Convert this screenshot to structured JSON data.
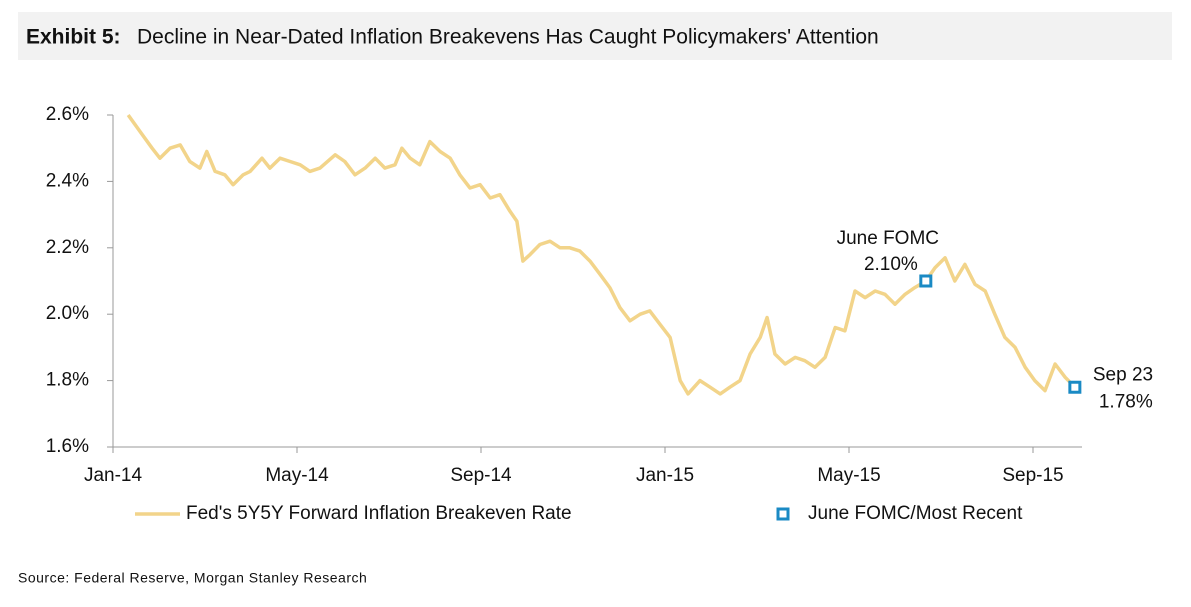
{
  "chart_data": {
    "type": "line",
    "title_label": "Exhibit 5:",
    "title": "Decline in Near-Dated Inflation Breakevens Has Caught Policymakers' Attention",
    "source": "Source: Federal Reserve, Morgan Stanley Research",
    "legend": "bottom",
    "xlim": [
      0,
      21
    ],
    "xticks": [
      {
        "value": 0,
        "label": "Jan-14"
      },
      {
        "value": 4,
        "label": "May-14"
      },
      {
        "value": 8,
        "label": "Sep-14"
      },
      {
        "value": 12,
        "label": "Jan-15"
      },
      {
        "value": 16,
        "label": "May-15"
      },
      {
        "value": 20,
        "label": "Sep-15"
      }
    ],
    "ylim": [
      1.6,
      2.6
    ],
    "yticks": [
      {
        "value": 1.6,
        "label": "1.6%"
      },
      {
        "value": 1.8,
        "label": "1.8%"
      },
      {
        "value": 2.0,
        "label": "2.0%"
      },
      {
        "value": 2.2,
        "label": "2.2%"
      },
      {
        "value": 2.4,
        "label": "2.4%"
      },
      {
        "value": 2.6,
        "label": "2.6%"
      }
    ],
    "series": [
      {
        "name": "Fed's 5Y5Y Forward Inflation Breakeven Rate",
        "color": "#f2d48a",
        "x": [
          0.33,
          0.59,
          0.85,
          1.02,
          1.24,
          1.46,
          1.67,
          1.89,
          2.04,
          2.22,
          2.43,
          2.61,
          2.83,
          2.98,
          3.24,
          3.41,
          3.63,
          3.85,
          4.07,
          4.28,
          4.5,
          4.83,
          5.04,
          5.26,
          5.48,
          5.7,
          5.91,
          6.13,
          6.28,
          6.46,
          6.67,
          6.89,
          7.11,
          7.33,
          7.54,
          7.76,
          7.98,
          8.2,
          8.41,
          8.63,
          8.78,
          8.91,
          9.07,
          9.28,
          9.5,
          9.72,
          9.93,
          10.15,
          10.37,
          10.59,
          10.8,
          11.02,
          11.24,
          11.46,
          11.67,
          11.89,
          12.11,
          12.33,
          12.5,
          12.76,
          12.98,
          13.2,
          13.41,
          13.63,
          13.85,
          14.07,
          14.22,
          14.39,
          14.61,
          14.83,
          15.04,
          15.26,
          15.48,
          15.7,
          15.91,
          16.13,
          16.35,
          16.57,
          16.78,
          17,
          17.22,
          17.43,
          17.67,
          17.87,
          18.09,
          18.3,
          18.52,
          18.74,
          18.96,
          19.17,
          19.39,
          19.61,
          19.83,
          20.04,
          20.26,
          20.48,
          20.7,
          20.91
        ],
        "values": [
          2.6,
          2.55,
          2.5,
          2.47,
          2.5,
          2.51,
          2.46,
          2.44,
          2.49,
          2.43,
          2.42,
          2.39,
          2.42,
          2.43,
          2.47,
          2.44,
          2.47,
          2.46,
          2.45,
          2.43,
          2.44,
          2.48,
          2.46,
          2.42,
          2.44,
          2.47,
          2.44,
          2.45,
          2.5,
          2.47,
          2.45,
          2.52,
          2.49,
          2.47,
          2.42,
          2.38,
          2.39,
          2.35,
          2.36,
          2.31,
          2.28,
          2.16,
          2.18,
          2.21,
          2.22,
          2.2,
          2.2,
          2.19,
          2.16,
          2.12,
          2.08,
          2.02,
          1.98,
          2.0,
          2.01,
          1.97,
          1.93,
          1.8,
          1.76,
          1.8,
          1.78,
          1.76,
          1.78,
          1.8,
          1.88,
          1.93,
          1.99,
          1.88,
          1.85,
          1.87,
          1.86,
          1.84,
          1.87,
          1.96,
          1.95,
          2.07,
          2.05,
          2.07,
          2.06,
          2.03,
          2.06,
          2.08,
          2.1,
          2.14,
          2.17,
          2.1,
          2.15,
          2.09,
          2.07,
          2.0,
          1.93,
          1.9,
          1.84,
          1.8,
          1.77,
          1.85,
          1.81,
          1.78
        ]
      },
      {
        "name": "June FOMC/Most Recent",
        "color": "#1a8ac4",
        "marker": "square",
        "x": [
          17.67,
          20.91
        ],
        "values": [
          2.1,
          1.78
        ],
        "value_labels": [
          "2.10%",
          "1.78%"
        ],
        "point_names": [
          "June FOMC",
          "Sep 23"
        ]
      }
    ]
  }
}
